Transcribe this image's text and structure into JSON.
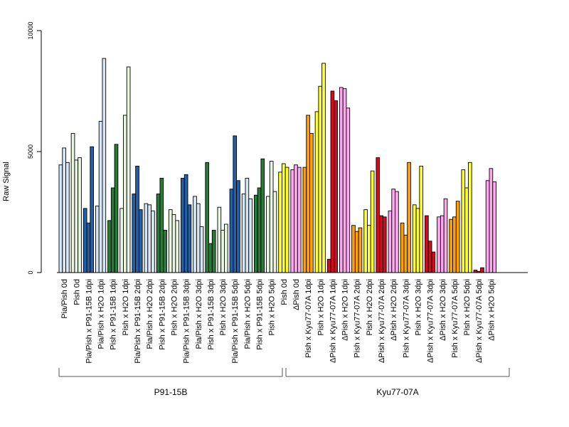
{
  "chart_data": {
    "type": "bar",
    "title": "",
    "xlabel": "",
    "ylabel": "Raw Signal",
    "ylim": [
      0,
      10000
    ],
    "yticks": [
      0,
      5000,
      10000
    ],
    "grid": false,
    "legend": "none",
    "group_labels": [
      "P91-15B",
      "Kyu77-07A"
    ],
    "categories": [
      {
        "label": "Pia/Pish 0d",
        "color": "#D6E6F5",
        "values": [
          4450,
          5150,
          4550
        ]
      },
      {
        "label": "Pish 0d",
        "color": "#E8F5E0",
        "values": [
          5750,
          4650,
          4750
        ]
      },
      {
        "label": "Pia/Pish x P91-15B 1dpi",
        "color": "#2260A8",
        "values": [
          2650,
          2050,
          5200
        ]
      },
      {
        "label": "Pia/Pish x H2O 1dpi",
        "color": "#D6E6F5",
        "values": [
          2750,
          6250,
          8850
        ]
      },
      {
        "label": "Pish x P91-15B 1dpi",
        "color": "#2A7A3A",
        "values": [
          2150,
          3500,
          5300
        ]
      },
      {
        "label": "Pish x H2O 1dpi",
        "color": "#E8F5E0",
        "values": [
          2650,
          6500,
          8500
        ]
      },
      {
        "label": "Pia/Pish x P91-15B 2dpi",
        "color": "#2260A8",
        "values": [
          3250,
          4400,
          2600
        ]
      },
      {
        "label": "Pia/Pish x H2O 2dpi",
        "color": "#D6E6F5",
        "values": [
          2850,
          2800,
          2550
        ]
      },
      {
        "label": "Pish x P91-15B 2dpi",
        "color": "#2A7A3A",
        "values": [
          3250,
          3900,
          1750
        ]
      },
      {
        "label": "Pish x H2O 2dpi",
        "color": "#E8F5E0",
        "values": [
          2600,
          2400,
          2150
        ]
      },
      {
        "label": "Pia/Pish x P91-15B 3dpi",
        "color": "#2260A8",
        "values": [
          3900,
          4050,
          2800
        ]
      },
      {
        "label": "Pia/Pish x H2O 3dpi",
        "color": "#D6E6F5",
        "values": [
          3150,
          2850,
          1900
        ]
      },
      {
        "label": "Pish x P91-15B 3dpi",
        "color": "#2A7A3A",
        "values": [
          4550,
          1200,
          1750
        ]
      },
      {
        "label": "Pish x H2O 3dpi",
        "color": "#E8F5E0",
        "values": [
          2700,
          1750,
          2000
        ]
      },
      {
        "label": "Pia/Pish x P91-15B 5dpi",
        "color": "#2260A8",
        "values": [
          3450,
          5650,
          3800
        ]
      },
      {
        "label": "Pia/Pish x H2O 5dpi",
        "color": "#D6E6F5",
        "values": [
          3250,
          3900,
          3050
        ]
      },
      {
        "label": "Pish x P91-15B 5dpi",
        "color": "#2A7A3A",
        "values": [
          3200,
          3500,
          4700
        ]
      },
      {
        "label": "Pish x H2O 5dpi",
        "color": "#E8F5E0",
        "values": [
          3150,
          4600,
          3350
        ]
      },
      {
        "label": "Pish 0d",
        "color": "#FFFF33",
        "values": [
          4150,
          4500,
          4350
        ]
      },
      {
        "label": "ΔPish 0d",
        "color": "#FFA8F0",
        "values": [
          4250,
          4450,
          4350
        ]
      },
      {
        "label": "Pish x Kyu77-07A 1dpi",
        "color": "#FFA200",
        "values": [
          4350,
          6500,
          5750
        ]
      },
      {
        "label": "Pish x H2O 1dpi",
        "color": "#FFFF33",
        "values": [
          6650,
          7700,
          8650
        ]
      },
      {
        "label": "ΔPish x Kyu77-07A 1dpi",
        "color": "#D20C1C",
        "values": [
          550,
          7500,
          7100
        ]
      },
      {
        "label": "ΔPish x H2O 1dpi",
        "color": "#FFA8F0",
        "values": [
          7650,
          7600,
          6800
        ]
      },
      {
        "label": "Pish x Kyu77-07A 2dpi",
        "color": "#FFA200",
        "values": [
          1950,
          1700,
          1850
        ]
      },
      {
        "label": "Pish x H2O 2dpi",
        "color": "#FFFF33",
        "values": [
          2600,
          1950,
          4200
        ]
      },
      {
        "label": "ΔPish x Kyu77-07A 2dpi",
        "color": "#D20C1C",
        "values": [
          4750,
          2350,
          2300
        ]
      },
      {
        "label": "ΔPish x H2O 2dpi",
        "color": "#FFA8F0",
        "values": [
          2550,
          3450,
          3350
        ]
      },
      {
        "label": "Pish x Kyu77-07A 3dpi",
        "color": "#FFA200",
        "values": [
          2050,
          1550,
          4550
        ]
      },
      {
        "label": "Pish x H2O 3dpi",
        "color": "#FFFF33",
        "values": [
          2800,
          2650,
          4400
        ]
      },
      {
        "label": "ΔPish x Kyu77-07A 3dpi",
        "color": "#D20C1C",
        "values": [
          2350,
          1300,
          850
        ]
      },
      {
        "label": "ΔPish x H2O 3dpi",
        "color": "#FFA8F0",
        "values": [
          2300,
          2350,
          3050
        ]
      },
      {
        "label": "Pish x Kyu77-07A 5dpi",
        "color": "#FFA200",
        "values": [
          2200,
          2300,
          2950
        ]
      },
      {
        "label": "Pish x H2O 5dpi",
        "color": "#FFFF33",
        "values": [
          4250,
          3500,
          4550
        ]
      },
      {
        "label": "ΔPish x Kyu77-07A 5dpi",
        "color": "#D20C1C",
        "values": [
          100,
          50,
          200
        ]
      },
      {
        "label": "ΔPish x H2O 5dpi",
        "color": "#FFA8F0",
        "values": [
          3800,
          4300,
          3750
        ]
      }
    ]
  }
}
